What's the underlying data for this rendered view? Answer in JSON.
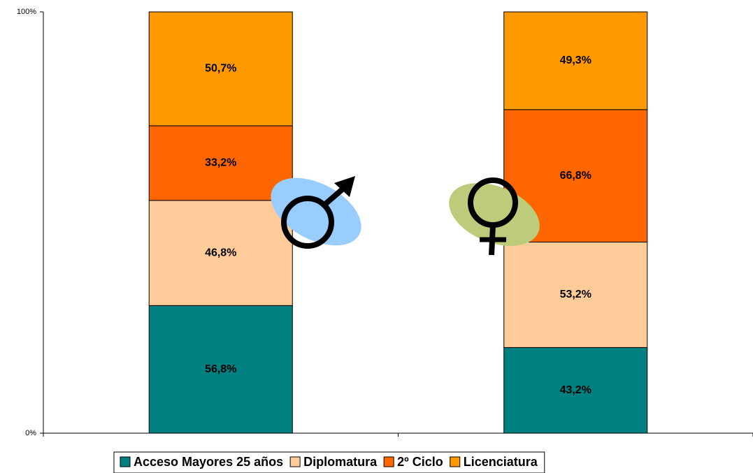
{
  "chart_data": {
    "type": "bar",
    "stacked": "percent",
    "categories": [
      null,
      null
    ],
    "series": [
      {
        "name": "Acceso Mayores 25 años",
        "color": "#008080",
        "values": [
          56.8,
          43.2
        ],
        "value_labels": [
          "56,8%",
          "43,2%"
        ]
      },
      {
        "name": "Diplomatura",
        "color": "#ffcc99",
        "values": [
          46.8,
          53.2
        ],
        "value_labels": [
          "46,8%",
          "53,2%"
        ]
      },
      {
        "name": "2º Ciclo",
        "color": "#ff6600",
        "values": [
          33.2,
          66.8
        ],
        "value_labels": [
          "33,2%",
          "66,8%"
        ]
      },
      {
        "name": "Licenciatura",
        "color": "#ff9900",
        "values": [
          50.7,
          49.3
        ],
        "value_labels": [
          "50,7%",
          "49,3%"
        ]
      }
    ],
    "ylim": [
      0,
      100
    ],
    "yticks": [
      {
        "value": 0,
        "label": "0%"
      },
      {
        "value": 100,
        "label": "100%"
      }
    ],
    "legend": "bottom"
  }
}
